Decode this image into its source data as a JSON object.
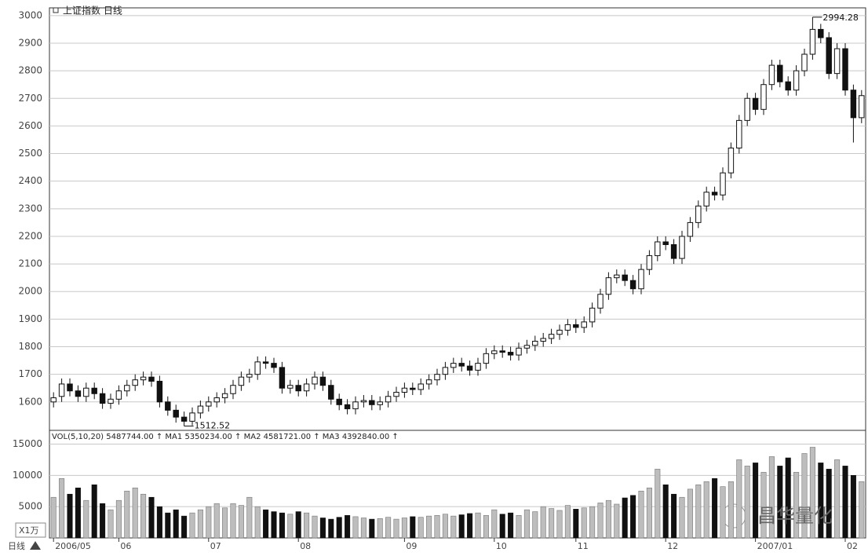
{
  "chart_data": {
    "type": "candlestick",
    "title": "上证指数 日线",
    "period_label": "日线",
    "watermark": "昌华量化",
    "categories": [
      "2006/05",
      null,
      null,
      null,
      null,
      null,
      null,
      null,
      "06",
      null,
      null,
      null,
      null,
      null,
      null,
      null,
      null,
      null,
      null,
      "07",
      null,
      null,
      null,
      null,
      null,
      null,
      null,
      null,
      null,
      null,
      "08",
      null,
      null,
      null,
      null,
      null,
      null,
      null,
      null,
      null,
      null,
      null,
      null,
      "09",
      null,
      null,
      null,
      null,
      null,
      null,
      null,
      null,
      null,
      null,
      "10",
      null,
      null,
      null,
      null,
      null,
      null,
      null,
      null,
      null,
      "11",
      null,
      null,
      null,
      null,
      null,
      null,
      null,
      null,
      null,
      null,
      "12",
      null,
      null,
      null,
      null,
      null,
      null,
      null,
      null,
      null,
      null,
      "2007/01",
      null,
      null,
      null,
      null,
      null,
      null,
      null,
      null,
      null,
      null,
      "02",
      null,
      null
    ],
    "open": [
      1600,
      1620,
      1665,
      1640,
      1620,
      1650,
      1630,
      1595,
      1610,
      1640,
      1660,
      1680,
      1690,
      1675,
      1600,
      1570,
      1545,
      1530,
      1560,
      1585,
      1600,
      1615,
      1630,
      1660,
      1690,
      1700,
      1745,
      1740,
      1725,
      1650,
      1660,
      1640,
      1665,
      1690,
      1660,
      1610,
      1590,
      1575,
      1600,
      1605,
      1590,
      1600,
      1620,
      1635,
      1650,
      1645,
      1665,
      1680,
      1700,
      1725,
      1740,
      1730,
      1715,
      1740,
      1775,
      1785,
      1780,
      1770,
      1795,
      1805,
      1820,
      1830,
      1845,
      1860,
      1880,
      1870,
      1890,
      1940,
      1990,
      2050,
      2060,
      2040,
      2010,
      2080,
      2130,
      2180,
      2170,
      2120,
      2200,
      2250,
      2310,
      2360,
      2350,
      2430,
      2520,
      2620,
      2700,
      2660,
      2750,
      2820,
      2760,
      2730,
      2800,
      2860,
      2950,
      2920,
      2790,
      2880,
      2730,
      2630
    ],
    "high": [
      1635,
      1685,
      1685,
      1660,
      1670,
      1670,
      1650,
      1630,
      1660,
      1680,
      1700,
      1710,
      1710,
      1695,
      1620,
      1590,
      1565,
      1580,
      1605,
      1620,
      1635,
      1650,
      1680,
      1710,
      1720,
      1765,
      1765,
      1760,
      1745,
      1680,
      1680,
      1685,
      1710,
      1710,
      1680,
      1630,
      1610,
      1620,
      1625,
      1625,
      1620,
      1640,
      1655,
      1670,
      1670,
      1685,
      1700,
      1720,
      1745,
      1760,
      1760,
      1750,
      1760,
      1795,
      1805,
      1805,
      1800,
      1815,
      1825,
      1840,
      1850,
      1865,
      1880,
      1900,
      1900,
      1910,
      1960,
      2010,
      2070,
      2080,
      2080,
      2060,
      2100,
      2150,
      2200,
      2200,
      2190,
      2220,
      2270,
      2330,
      2380,
      2380,
      2450,
      2540,
      2640,
      2720,
      2720,
      2770,
      2840,
      2840,
      2780,
      2820,
      2880,
      2994.28,
      2970,
      2940,
      2900,
      2900,
      2750,
      2730
    ],
    "low": [
      1580,
      1600,
      1620,
      1600,
      1600,
      1610,
      1575,
      1575,
      1590,
      1620,
      1640,
      1660,
      1655,
      1580,
      1550,
      1525,
      1512.52,
      1515,
      1540,
      1565,
      1580,
      1595,
      1610,
      1640,
      1670,
      1680,
      1720,
      1705,
      1630,
      1630,
      1620,
      1620,
      1645,
      1640,
      1590,
      1570,
      1555,
      1555,
      1580,
      1570,
      1570,
      1580,
      1600,
      1615,
      1625,
      1625,
      1645,
      1660,
      1680,
      1705,
      1710,
      1695,
      1695,
      1720,
      1755,
      1760,
      1750,
      1750,
      1775,
      1785,
      1800,
      1810,
      1825,
      1840,
      1850,
      1850,
      1870,
      1920,
      1970,
      2030,
      2020,
      1990,
      1990,
      2060,
      2110,
      2150,
      2100,
      2100,
      2180,
      2230,
      2290,
      2330,
      2330,
      2410,
      2500,
      2600,
      2640,
      2640,
      2730,
      2740,
      2710,
      2710,
      2780,
      2840,
      2900,
      2770,
      2770,
      2710,
      2540,
      2610
    ],
    "close": [
      1615,
      1665,
      1640,
      1620,
      1650,
      1630,
      1595,
      1610,
      1640,
      1660,
      1680,
      1690,
      1675,
      1600,
      1570,
      1545,
      1530,
      1560,
      1585,
      1600,
      1615,
      1630,
      1660,
      1690,
      1700,
      1745,
      1740,
      1725,
      1650,
      1660,
      1640,
      1665,
      1690,
      1660,
      1610,
      1590,
      1575,
      1600,
      1605,
      1590,
      1600,
      1620,
      1635,
      1650,
      1645,
      1665,
      1680,
      1700,
      1725,
      1740,
      1730,
      1715,
      1740,
      1775,
      1785,
      1780,
      1770,
      1795,
      1805,
      1820,
      1830,
      1845,
      1860,
      1880,
      1870,
      1890,
      1940,
      1990,
      2050,
      2060,
      2040,
      2010,
      2080,
      2130,
      2180,
      2170,
      2120,
      2200,
      2250,
      2310,
      2360,
      2350,
      2430,
      2520,
      2620,
      2700,
      2660,
      2750,
      2820,
      2760,
      2730,
      2800,
      2860,
      2950,
      2920,
      2790,
      2880,
      2730,
      2630,
      2710
    ],
    "ylim": [
      1497,
      3028
    ],
    "yticks": [
      1600,
      1700,
      1800,
      1900,
      2000,
      2100,
      2200,
      2300,
      2400,
      2500,
      2600,
      2700,
      2800,
      2900,
      3000
    ],
    "grid": true,
    "volume": {
      "header": "VOL(5,10,20) 5487744.00 ↑  MA1 5350234.00 ↑  MA2 4581721.00 ↑  MA3 4392840.00 ↑",
      "unit": "X1万",
      "values": [
        6500,
        9500,
        7000,
        8000,
        6000,
        8500,
        5500,
        4500,
        6000,
        7500,
        8000,
        7000,
        6500,
        5000,
        4000,
        4500,
        3500,
        4000,
        4500,
        5000,
        5500,
        4800,
        5500,
        5200,
        6500,
        5000,
        4500,
        4200,
        4000,
        3800,
        4200,
        4000,
        3500,
        3200,
        3000,
        3300,
        3600,
        3400,
        3200,
        3000,
        3100,
        3300,
        3000,
        3200,
        3400,
        3300,
        3500,
        3600,
        3800,
        3500,
        3700,
        3900,
        4000,
        3600,
        4500,
        3800,
        4000,
        3600,
        4500,
        4200,
        5000,
        4700,
        4400,
        5200,
        4600,
        4800,
        5000,
        5600,
        6000,
        5400,
        6400,
        6800,
        7500,
        8000,
        11000,
        8500,
        7000,
        6500,
        7800,
        8500,
        9000,
        9500,
        8200,
        9000,
        12500,
        11500,
        12000,
        10500,
        13000,
        11500,
        12800,
        10500,
        13500,
        14500,
        12000,
        11000,
        12500,
        11500,
        10000,
        9000
      ],
      "ylim": [
        0,
        17200
      ],
      "yticks": [
        5000,
        10000,
        15000
      ]
    }
  }
}
